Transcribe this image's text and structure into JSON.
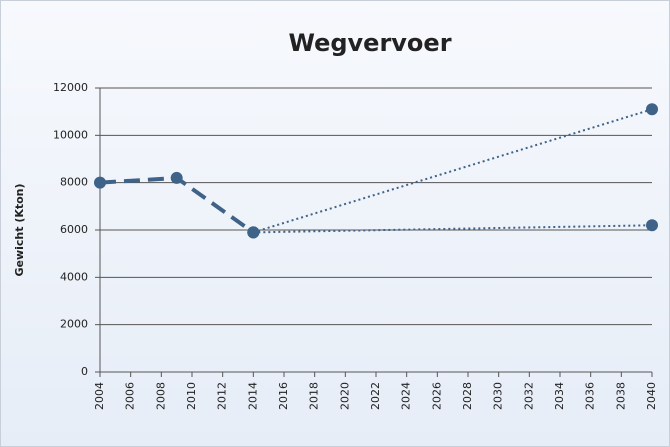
{
  "chart_data": {
    "type": "line",
    "title": "Wegvervoer",
    "y_label": "Gewicht (Kton)",
    "xlim": [
      2004,
      2040
    ],
    "xticks": [
      2004,
      2006,
      2008,
      2010,
      2012,
      2014,
      2016,
      2018,
      2020,
      2022,
      2024,
      2026,
      2028,
      2030,
      2032,
      2034,
      2036,
      2038,
      2040
    ],
    "ylim": [
      0,
      12000
    ],
    "yticks": [
      0,
      2000,
      4000,
      6000,
      8000,
      10000,
      12000
    ],
    "grid": true,
    "series": [
      {
        "color": "#3e6288",
        "line_style": "dashed",
        "x": [
          2004,
          2009,
          2014
        ],
        "values": [
          8000,
          8200,
          5900
        ]
      },
      {
        "color": "#3e6288",
        "line_style": "dotted",
        "x": [
          2014,
          2040
        ],
        "values": [
          5900,
          11100
        ]
      },
      {
        "color": "#3e6288",
        "line_style": "dotted",
        "x": [
          2014,
          2040
        ],
        "values": [
          5900,
          6200
        ]
      }
    ]
  }
}
